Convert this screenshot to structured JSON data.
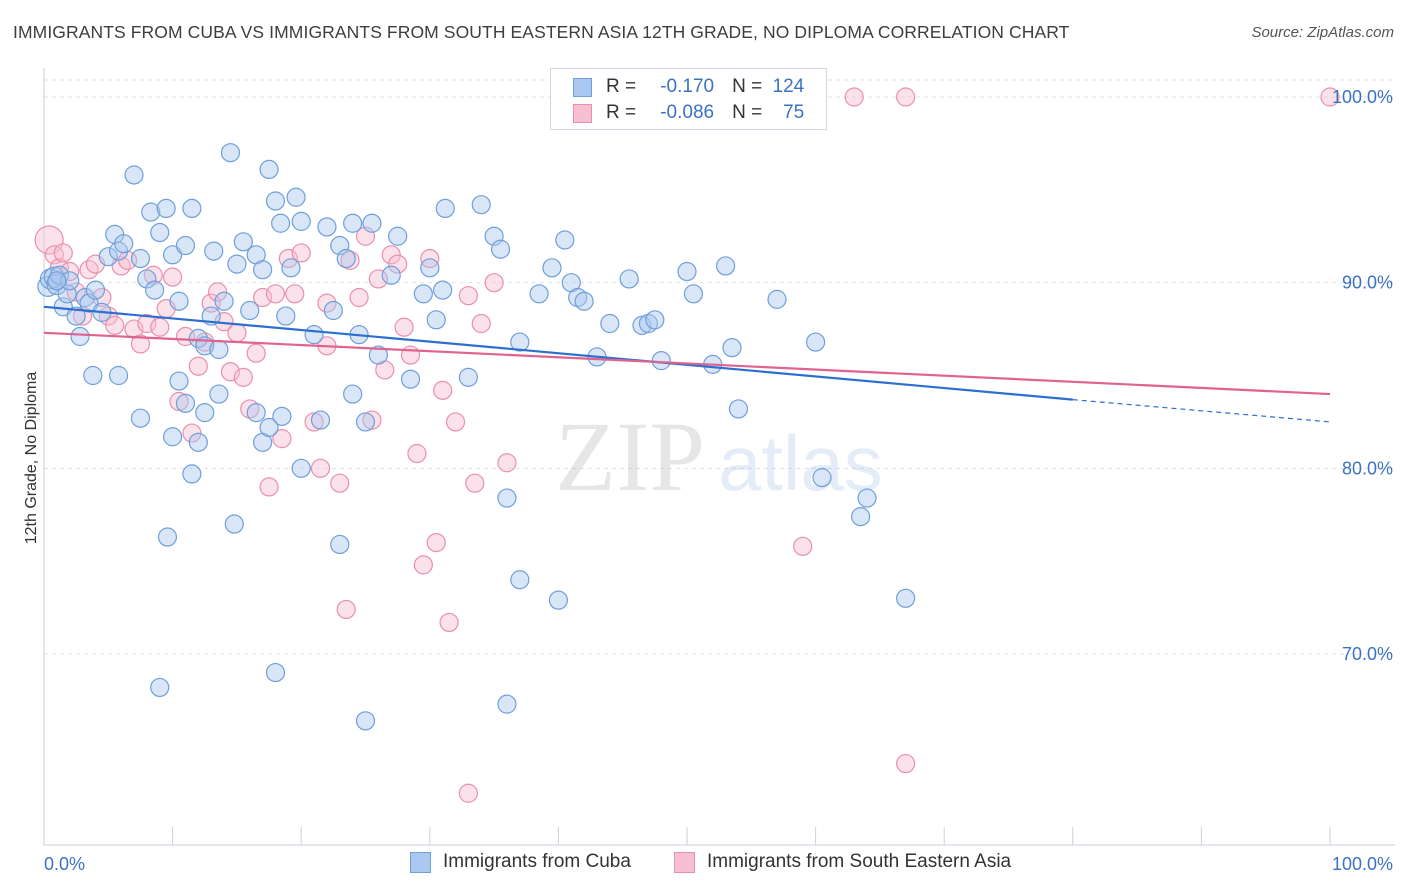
{
  "header": {
    "title": "IMMIGRANTS FROM CUBA VS IMMIGRANTS FROM SOUTH EASTERN ASIA 12TH GRADE, NO DIPLOMA CORRELATION CHART",
    "source": "Source: ZipAtlas.com"
  },
  "watermark": {
    "zip": "ZIP",
    "atlas": "atlas"
  },
  "legend": {
    "rows": [
      {
        "r_label": "R =",
        "r_value": "-0.170",
        "n_label": "N =",
        "n_value": "124"
      },
      {
        "r_label": "R =",
        "r_value": "-0.086",
        "n_label": "N =",
        "n_value": "75"
      }
    ]
  },
  "bottom_legend": {
    "cuba": "Immigrants from Cuba",
    "sea": "Immigrants from South Eastern Asia"
  },
  "colors": {
    "cuba_fill": "#aac8f0",
    "cuba_stroke": "#6f9fd8",
    "cuba_line": "#2c6fcf",
    "sea_fill": "#f7bfd1",
    "sea_stroke": "#e98fae",
    "sea_line": "#e0628e",
    "axis_text": "#3b72c4",
    "grid": "#dde3ea"
  },
  "chart_data": {
    "type": "scatter",
    "title": "IMMIGRANTS FROM CUBA VS IMMIGRANTS FROM SOUTH EASTERN ASIA 12TH GRADE, NO DIPLOMA CORRELATION CHART",
    "xlabel": "",
    "ylabel": "12th Grade, No Diploma",
    "xlim": [
      0,
      100
    ],
    "ylim": [
      60,
      101
    ],
    "x_tick_labels": [
      "0.0%",
      "100.0%"
    ],
    "y_ticks": [
      70,
      80,
      90,
      100
    ],
    "y_tick_labels": [
      "70.0%",
      "80.0%",
      "90.0%",
      "100.0%"
    ],
    "grid": true,
    "legend_position": "top-center",
    "series": [
      {
        "name": "Immigrants from Cuba",
        "r": -0.17,
        "n": 124,
        "trend": {
          "x0": 0,
          "y0": 88.7,
          "x1": 80,
          "y1": 83.7,
          "dashed_to_x": 100,
          "dashed_to_y": 82.5
        },
        "points": [
          [
            0.3,
            89.8
          ],
          [
            0.5,
            90.2
          ],
          [
            0.8,
            90.3
          ],
          [
            1.0,
            89.9
          ],
          [
            1.2,
            90.4
          ],
          [
            1.5,
            88.7
          ],
          [
            1.8,
            89.4
          ],
          [
            2.0,
            90.1
          ],
          [
            2.5,
            88.2
          ],
          [
            2.8,
            87.1
          ],
          [
            3.2,
            89.2
          ],
          [
            3.5,
            88.9
          ],
          [
            4.0,
            89.6
          ],
          [
            4.5,
            88.4
          ],
          [
            5.0,
            91.4
          ],
          [
            5.5,
            92.6
          ],
          [
            5.8,
            91.7
          ],
          [
            6.2,
            92.1
          ],
          [
            7.0,
            95.8
          ],
          [
            7.5,
            91.3
          ],
          [
            8.0,
            90.2
          ],
          [
            8.3,
            93.8
          ],
          [
            8.6,
            89.6
          ],
          [
            9.0,
            92.7
          ],
          [
            9.5,
            94.0
          ],
          [
            10.0,
            91.5
          ],
          [
            10.5,
            89.0
          ],
          [
            11.0,
            92.0
          ],
          [
            11.5,
            94.0
          ],
          [
            12.0,
            87.0
          ],
          [
            12.5,
            86.6
          ],
          [
            13.0,
            88.2
          ],
          [
            13.2,
            91.7
          ],
          [
            13.6,
            86.4
          ],
          [
            14.0,
            89.0
          ],
          [
            14.5,
            97.0
          ],
          [
            15.0,
            91.0
          ],
          [
            15.5,
            92.2
          ],
          [
            16.0,
            88.5
          ],
          [
            16.5,
            91.5
          ],
          [
            17.0,
            90.7
          ],
          [
            17.5,
            96.1
          ],
          [
            18.0,
            94.4
          ],
          [
            18.4,
            93.2
          ],
          [
            18.8,
            88.2
          ],
          [
            19.2,
            90.8
          ],
          [
            19.6,
            94.6
          ],
          [
            20.0,
            93.3
          ],
          [
            21.0,
            87.2
          ],
          [
            22.0,
            93.0
          ],
          [
            22.5,
            88.5
          ],
          [
            23.0,
            92.0
          ],
          [
            23.5,
            91.3
          ],
          [
            24.0,
            93.2
          ],
          [
            24.5,
            87.2
          ],
          [
            25.5,
            93.2
          ],
          [
            26.0,
            86.1
          ],
          [
            27.0,
            90.4
          ],
          [
            27.5,
            92.5
          ],
          [
            28.5,
            84.8
          ],
          [
            29.5,
            89.4
          ],
          [
            30.0,
            90.8
          ],
          [
            30.5,
            88.0
          ],
          [
            31.0,
            89.6
          ],
          [
            31.2,
            94.0
          ],
          [
            33.0,
            84.9
          ],
          [
            34.0,
            94.2
          ],
          [
            35.0,
            92.5
          ],
          [
            35.5,
            91.8
          ],
          [
            37.0,
            86.8
          ],
          [
            38.5,
            89.4
          ],
          [
            39.5,
            90.8
          ],
          [
            40.5,
            92.3
          ],
          [
            41.0,
            90.0
          ],
          [
            41.5,
            89.2
          ],
          [
            42.0,
            89.0
          ],
          [
            43.0,
            86.0
          ],
          [
            44.0,
            87.8
          ],
          [
            45.5,
            90.2
          ],
          [
            46.5,
            87.7
          ],
          [
            47.0,
            87.8
          ],
          [
            47.5,
            88.0
          ],
          [
            48.0,
            85.8
          ],
          [
            50.0,
            90.6
          ],
          [
            50.5,
            89.4
          ],
          [
            52.0,
            85.6
          ],
          [
            53.0,
            90.9
          ],
          [
            54.0,
            83.2
          ],
          [
            53.5,
            86.5
          ],
          [
            57.0,
            89.1
          ],
          [
            5.8,
            85.0
          ],
          [
            3.8,
            85.0
          ],
          [
            10.5,
            84.7
          ],
          [
            11.0,
            83.5
          ],
          [
            12.5,
            83.0
          ],
          [
            13.6,
            84.0
          ],
          [
            16.5,
            83.0
          ],
          [
            18.5,
            82.8
          ],
          [
            21.5,
            82.6
          ],
          [
            24.0,
            84.0
          ],
          [
            25.0,
            82.5
          ],
          [
            7.5,
            82.7
          ],
          [
            10.0,
            81.7
          ],
          [
            12.0,
            81.4
          ],
          [
            17.0,
            81.4
          ],
          [
            17.5,
            82.2
          ],
          [
            20.0,
            80.0
          ],
          [
            11.5,
            79.7
          ],
          [
            36.0,
            78.4
          ],
          [
            14.8,
            77.0
          ],
          [
            9.6,
            76.3
          ],
          [
            23.0,
            75.9
          ],
          [
            37.0,
            74.0
          ],
          [
            40.0,
            72.9
          ],
          [
            9.0,
            68.2
          ],
          [
            18.0,
            69.0
          ],
          [
            25.0,
            66.4
          ],
          [
            36.0,
            67.3
          ],
          [
            60.0,
            86.8
          ],
          [
            60.5,
            79.5
          ],
          [
            63.5,
            77.4
          ],
          [
            64.0,
            78.4
          ],
          [
            67.0,
            73.0
          ],
          [
            1.0,
            90.1
          ]
        ]
      },
      {
        "name": "Immigrants from South Eastern Asia",
        "r": -0.086,
        "n": 75,
        "trend": {
          "x0": 0,
          "y0": 87.3,
          "x1": 100,
          "y1": 84.0
        },
        "points": [
          [
            0.4,
            92.3
          ],
          [
            0.8,
            91.5
          ],
          [
            1.2,
            90.8
          ],
          [
            1.5,
            91.6
          ],
          [
            2.0,
            90.6
          ],
          [
            2.5,
            89.5
          ],
          [
            3.0,
            88.2
          ],
          [
            3.5,
            90.7
          ],
          [
            4.0,
            91.0
          ],
          [
            4.5,
            89.2
          ],
          [
            5.0,
            88.2
          ],
          [
            5.5,
            87.7
          ],
          [
            6.0,
            90.9
          ],
          [
            6.5,
            91.2
          ],
          [
            7.0,
            87.5
          ],
          [
            7.5,
            86.7
          ],
          [
            8.0,
            87.8
          ],
          [
            8.5,
            90.4
          ],
          [
            9.0,
            87.6
          ],
          [
            9.5,
            88.6
          ],
          [
            10.0,
            90.3
          ],
          [
            10.5,
            83.6
          ],
          [
            11.0,
            87.1
          ],
          [
            11.5,
            81.9
          ],
          [
            12.0,
            85.5
          ],
          [
            12.5,
            86.8
          ],
          [
            13.0,
            88.9
          ],
          [
            13.5,
            89.5
          ],
          [
            14.0,
            87.9
          ],
          [
            14.5,
            85.2
          ],
          [
            15.0,
            87.3
          ],
          [
            15.5,
            84.9
          ],
          [
            16.0,
            83.2
          ],
          [
            16.5,
            86.2
          ],
          [
            17.0,
            89.2
          ],
          [
            17.5,
            79.0
          ],
          [
            18.0,
            89.4
          ],
          [
            18.5,
            81.6
          ],
          [
            19.0,
            91.3
          ],
          [
            19.5,
            89.4
          ],
          [
            20.0,
            91.6
          ],
          [
            21.0,
            82.5
          ],
          [
            21.5,
            80.0
          ],
          [
            22.0,
            88.9
          ],
          [
            23.0,
            79.2
          ],
          [
            23.8,
            91.2
          ],
          [
            24.5,
            89.2
          ],
          [
            25.0,
            92.5
          ],
          [
            25.5,
            82.6
          ],
          [
            26.0,
            90.2
          ],
          [
            26.5,
            85.3
          ],
          [
            27.0,
            91.5
          ],
          [
            27.5,
            91.0
          ],
          [
            28.0,
            87.6
          ],
          [
            28.5,
            86.1
          ],
          [
            29.0,
            80.8
          ],
          [
            29.5,
            74.8
          ],
          [
            30.0,
            91.3
          ],
          [
            30.5,
            76.0
          ],
          [
            31.0,
            84.2
          ],
          [
            31.5,
            71.7
          ],
          [
            32.0,
            82.5
          ],
          [
            33.0,
            89.3
          ],
          [
            33.5,
            79.2
          ],
          [
            34.0,
            87.8
          ],
          [
            35.0,
            90.0
          ],
          [
            36.0,
            80.3
          ],
          [
            23.5,
            72.4
          ],
          [
            33.0,
            62.5
          ],
          [
            63.0,
            100.0
          ],
          [
            67.0,
            100.0
          ],
          [
            100.0,
            100.0
          ],
          [
            59.0,
            75.8
          ],
          [
            67.0,
            64.1
          ],
          [
            22.0,
            86.6
          ]
        ]
      }
    ]
  }
}
